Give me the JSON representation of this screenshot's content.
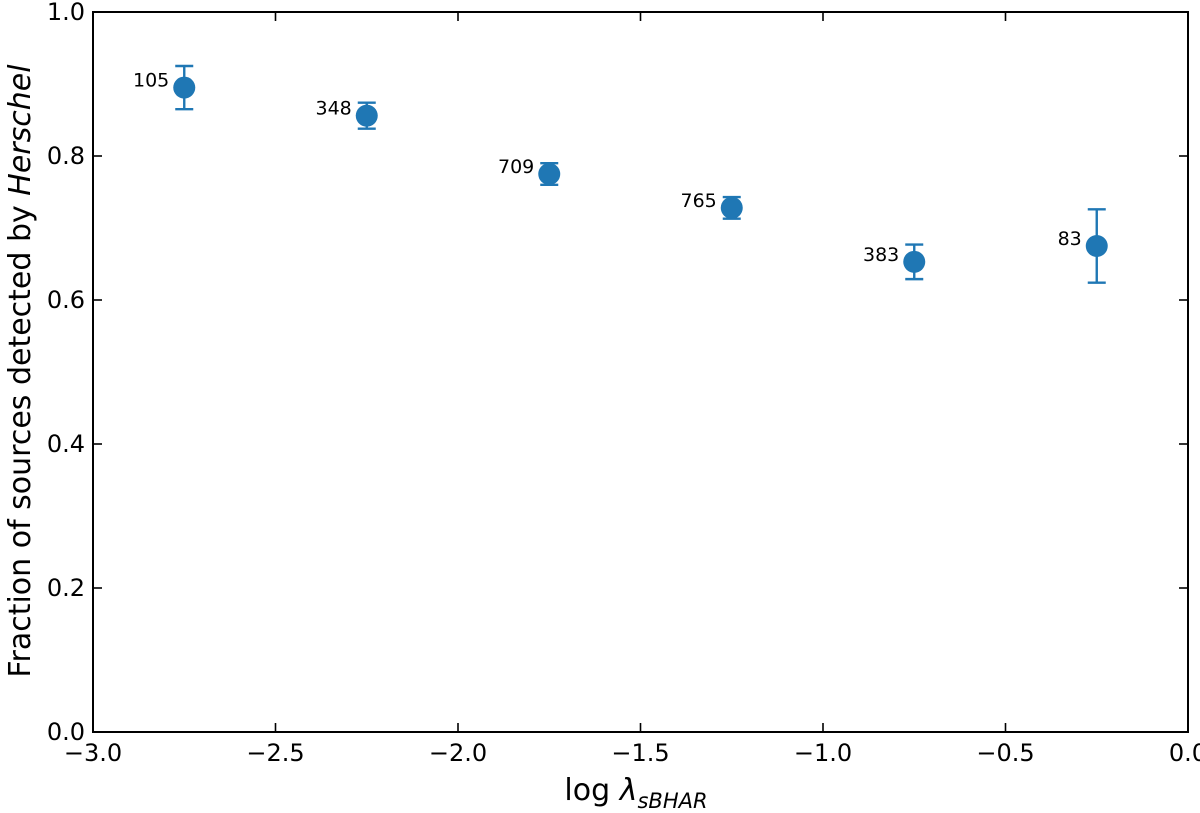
{
  "chart_data": {
    "type": "scatter",
    "xlabel": {
      "prefix": "log ",
      "symbol": "λ",
      "subscript": "sBHAR"
    },
    "ylabel": {
      "prefix": "Fraction of sources detected by ",
      "emphasis": "Herschel"
    },
    "xlim": [
      -3.0,
      0.0
    ],
    "ylim": [
      0.0,
      1.0
    ],
    "xticks": [
      -3.0,
      -2.5,
      -2.0,
      -1.5,
      -1.0,
      -0.5,
      0.0
    ],
    "xtick_labels": [
      "−3.0",
      "−2.5",
      "−2.0",
      "−1.5",
      "−1.0",
      "−0.5",
      "0.0"
    ],
    "yticks": [
      0.0,
      0.2,
      0.4,
      0.6,
      0.8,
      1.0
    ],
    "ytick_labels": [
      "0.0",
      "0.2",
      "0.4",
      "0.6",
      "0.8",
      "1.0"
    ],
    "grid": false,
    "tick_direction": "in",
    "series": [
      {
        "color": "#1f77b4",
        "marker": "circle",
        "points": [
          {
            "x": -2.75,
            "y": 0.895,
            "err_low": 0.865,
            "err_high": 0.925,
            "label": "105"
          },
          {
            "x": -2.25,
            "y": 0.856,
            "err_low": 0.838,
            "err_high": 0.874,
            "label": "348"
          },
          {
            "x": -1.75,
            "y": 0.775,
            "err_low": 0.76,
            "err_high": 0.79,
            "label": "709"
          },
          {
            "x": -1.25,
            "y": 0.728,
            "err_low": 0.713,
            "err_high": 0.743,
            "label": "765"
          },
          {
            "x": -0.75,
            "y": 0.653,
            "err_low": 0.629,
            "err_high": 0.677,
            "label": "383"
          },
          {
            "x": -0.25,
            "y": 0.675,
            "err_low": 0.624,
            "err_high": 0.726,
            "label": "83"
          }
        ]
      }
    ]
  }
}
